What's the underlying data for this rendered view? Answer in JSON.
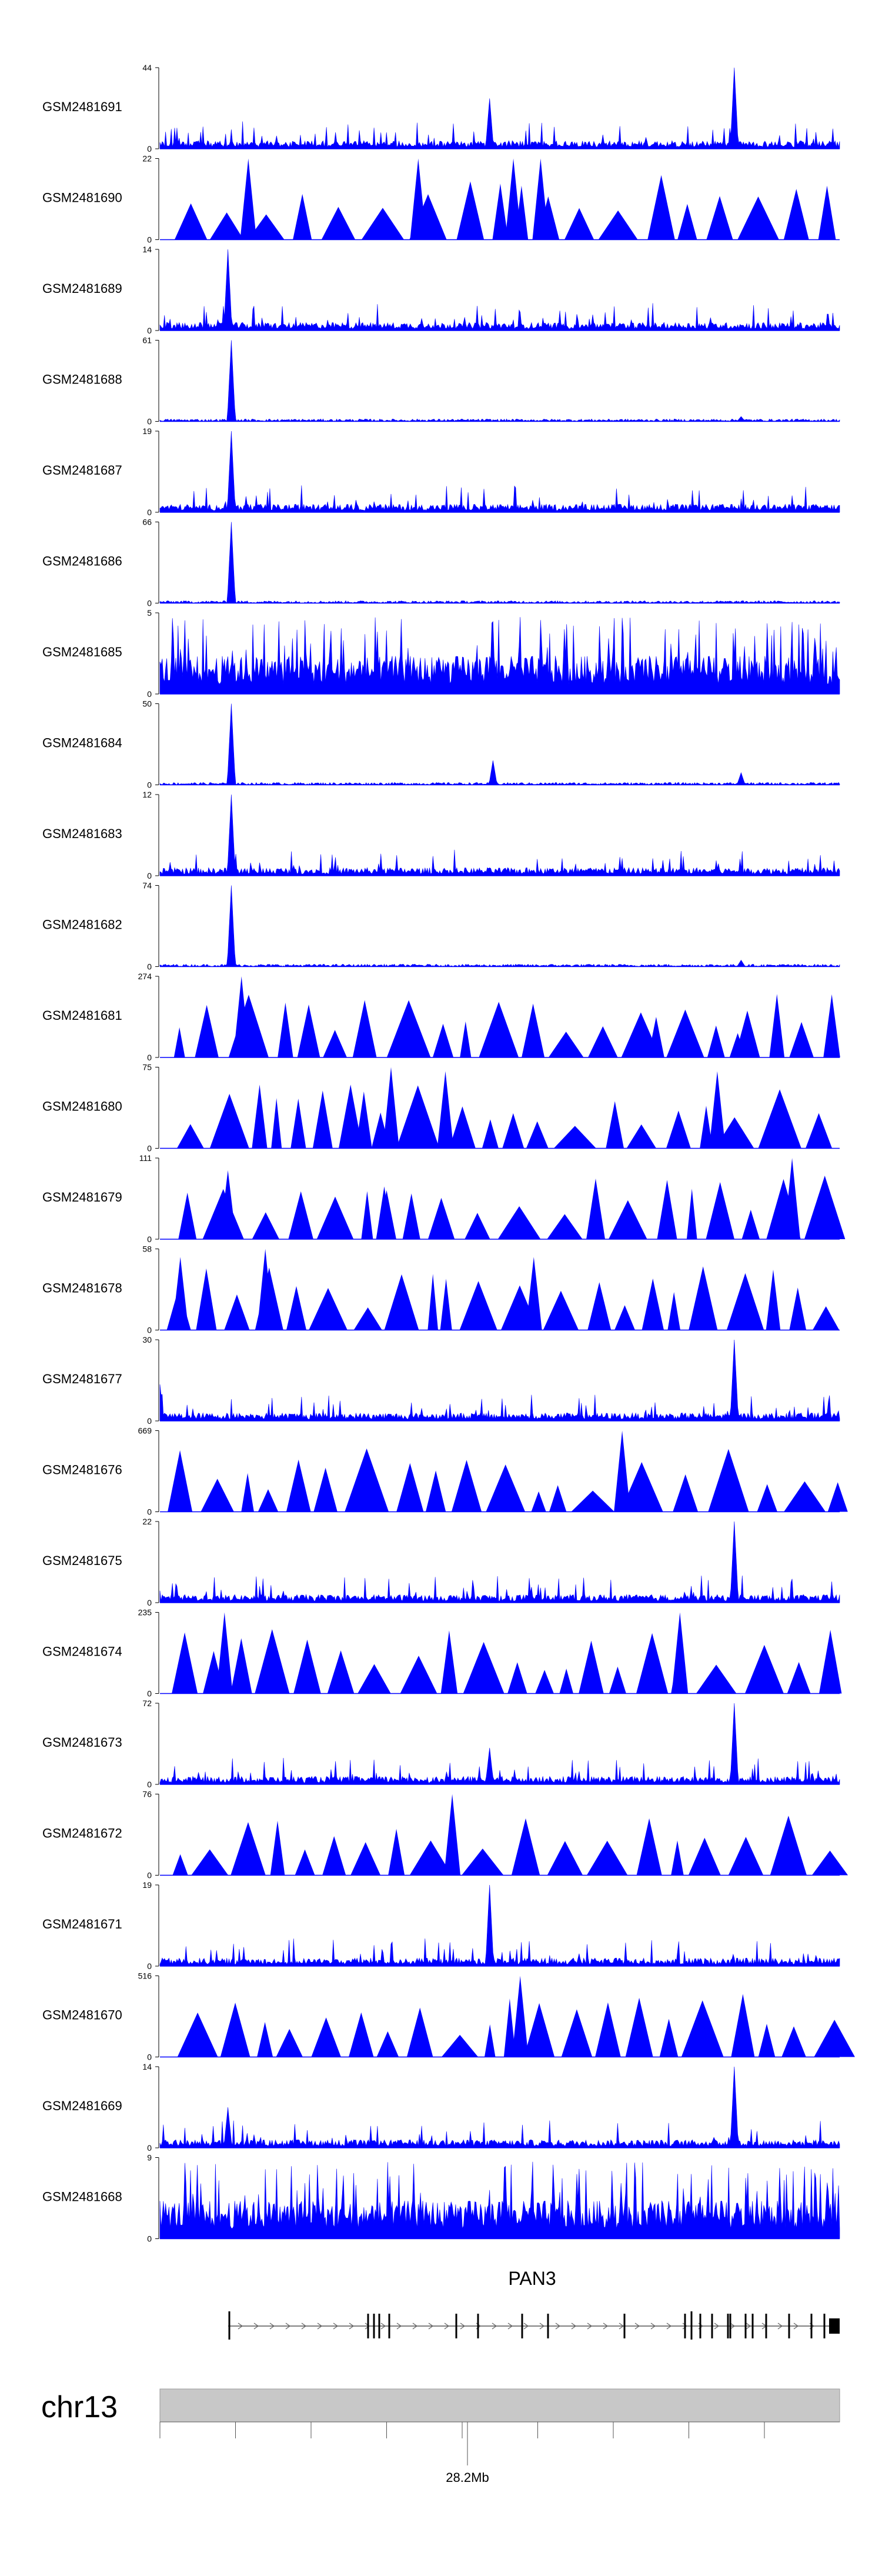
{
  "chart_data": {
    "type": "area",
    "title": "",
    "colors": {
      "signal": "#0000ff",
      "axis": "#000000",
      "ideogram": "#c8c8c8"
    },
    "x_axis": {
      "chromosome": "chr13",
      "center_label": "28.2Mb",
      "ticks": 9
    },
    "gene": {
      "name": "PAN3",
      "strand": "+",
      "exons": 22
    },
    "series": [
      {
        "name": "GSM2481691",
        "ymax": "44",
        "pattern": "noise",
        "peaks": [
          [
            0.485,
            0.62
          ],
          [
            0.845,
            1.0
          ]
        ]
      },
      {
        "name": "GSM2481690",
        "ymax": "22",
        "pattern": "sparse",
        "peaks": [
          [
            0.13,
            1.0
          ],
          [
            0.38,
            1.0
          ],
          [
            0.52,
            1.0
          ],
          [
            0.56,
            1.0
          ]
        ]
      },
      {
        "name": "GSM2481689",
        "ymax": "14",
        "pattern": "noise",
        "peaks": [
          [
            0.1,
            1.0
          ]
        ]
      },
      {
        "name": "GSM2481688",
        "ymax": "61",
        "pattern": "focal",
        "peaks": [
          [
            0.105,
            1.0
          ],
          [
            0.855,
            0.06
          ]
        ]
      },
      {
        "name": "GSM2481687",
        "ymax": "19",
        "pattern": "noise",
        "peaks": [
          [
            0.105,
            1.0
          ]
        ]
      },
      {
        "name": "GSM2481686",
        "ymax": "66",
        "pattern": "focal",
        "peaks": [
          [
            0.105,
            1.0
          ]
        ]
      },
      {
        "name": "GSM2481685",
        "ymax": "5",
        "pattern": "dense",
        "peaks": []
      },
      {
        "name": "GSM2481684",
        "ymax": "50",
        "pattern": "focal",
        "peaks": [
          [
            0.105,
            1.0
          ],
          [
            0.49,
            0.3
          ],
          [
            0.855,
            0.15
          ]
        ]
      },
      {
        "name": "GSM2481683",
        "ymax": "12",
        "pattern": "noise",
        "peaks": [
          [
            0.105,
            1.0
          ]
        ]
      },
      {
        "name": "GSM2481682",
        "ymax": "74",
        "pattern": "focal",
        "peaks": [
          [
            0.105,
            1.0
          ],
          [
            0.855,
            0.08
          ]
        ]
      },
      {
        "name": "GSM2481681",
        "ymax": "274",
        "pattern": "sparse",
        "peaks": [
          [
            0.12,
            1.0
          ],
          [
            0.73,
            0.5
          ],
          [
            0.85,
            0.3
          ]
        ]
      },
      {
        "name": "GSM2481680",
        "ymax": "75",
        "pattern": "sparse",
        "peaks": [
          [
            0.3,
            0.7
          ],
          [
            0.34,
            1.0
          ],
          [
            0.42,
            0.95
          ],
          [
            0.82,
            0.95
          ]
        ]
      },
      {
        "name": "GSM2481679",
        "ymax": "111",
        "pattern": "sparse",
        "peaks": [
          [
            0.1,
            0.85
          ],
          [
            0.33,
            0.65
          ],
          [
            0.93,
            1.0
          ]
        ]
      },
      {
        "name": "GSM2481678",
        "ymax": "58",
        "pattern": "sparse",
        "peaks": [
          [
            0.03,
            0.9
          ],
          [
            0.155,
            1.0
          ],
          [
            0.55,
            0.9
          ]
        ]
      },
      {
        "name": "GSM2481677",
        "ymax": "30",
        "pattern": "noise",
        "peaks": [
          [
            0.0,
            0.45
          ],
          [
            0.845,
            1.0
          ]
        ]
      },
      {
        "name": "GSM2481676",
        "ymax": "669",
        "pattern": "sparse",
        "peaks": [
          [
            0.37,
            0.4
          ],
          [
            0.68,
            1.0
          ]
        ]
      },
      {
        "name": "GSM2481675",
        "ymax": "22",
        "pattern": "noise",
        "peaks": [
          [
            0.845,
            1.0
          ]
        ]
      },
      {
        "name": "GSM2481674",
        "ymax": "235",
        "pattern": "sparse",
        "peaks": [
          [
            0.095,
            1.0
          ],
          [
            0.765,
            1.0
          ]
        ]
      },
      {
        "name": "GSM2481673",
        "ymax": "72",
        "pattern": "noise",
        "peaks": [
          [
            0.485,
            0.45
          ],
          [
            0.845,
            1.0
          ]
        ]
      },
      {
        "name": "GSM2481672",
        "ymax": "76",
        "pattern": "sparse",
        "peaks": [
          [
            0.43,
            1.0
          ]
        ]
      },
      {
        "name": "GSM2481671",
        "ymax": "19",
        "pattern": "noise",
        "peaks": [
          [
            0.485,
            1.0
          ]
        ]
      },
      {
        "name": "GSM2481670",
        "ymax": "516",
        "pattern": "sparse",
        "peaks": [
          [
            0.53,
            1.0
          ]
        ]
      },
      {
        "name": "GSM2481669",
        "ymax": "14",
        "pattern": "noise",
        "peaks": [
          [
            0.1,
            0.5
          ],
          [
            0.845,
            1.0
          ]
        ]
      },
      {
        "name": "GSM2481668",
        "ymax": "9",
        "pattern": "dense",
        "peaks": []
      }
    ]
  }
}
